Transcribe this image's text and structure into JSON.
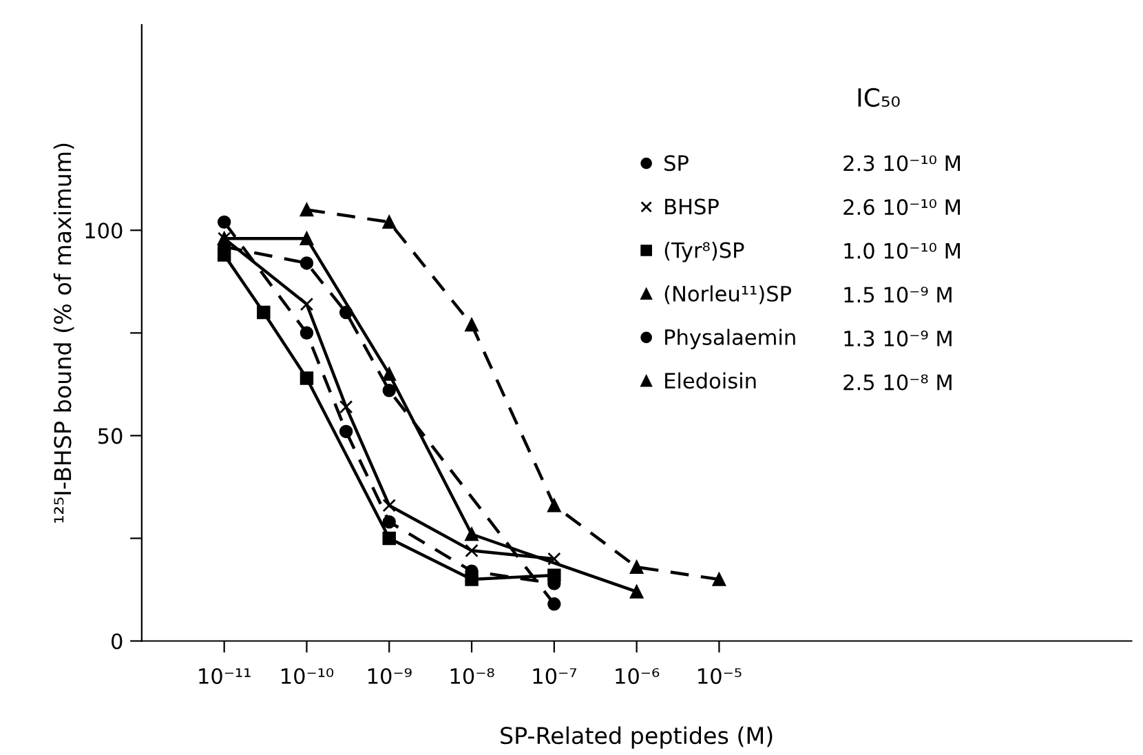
{
  "chart_data": {
    "type": "line",
    "xlabel": "SP-Related peptides (M)",
    "ylabel": "¹²⁵I-BHSP bound (% of maximum)",
    "legend_title": "IC₅₀",
    "log": "x",
    "xlim": [
      1e-12,
      1
    ],
    "xticks": [
      {
        "value": 1e-11,
        "label": "10⁻¹¹"
      },
      {
        "value": 1e-10,
        "label": "10⁻¹⁰"
      },
      {
        "value": 1e-09,
        "label": "10⁻⁹"
      },
      {
        "value": 1e-08,
        "label": "10⁻⁸"
      },
      {
        "value": 1e-07,
        "label": "10⁻⁷"
      },
      {
        "value": 1e-06,
        "label": "10⁻⁶"
      },
      {
        "value": 1e-05,
        "label": "10⁻⁵"
      }
    ],
    "ylim": [
      0,
      150
    ],
    "yticks": [
      0,
      {
        "value": 25,
        "label": null
      },
      50,
      {
        "value": 75,
        "label": null
      },
      100
    ],
    "grid": false,
    "legend": "right",
    "series": [
      {
        "name": "SP",
        "color": "#000000",
        "marker": "circle",
        "line_style": "dashed",
        "x": [
          1e-11,
          1e-10,
          3e-10,
          1e-09,
          1e-08,
          1e-07
        ],
        "values": [
          102,
          75,
          51,
          29,
          17,
          14
        ]
      },
      {
        "name": "BHSP",
        "color": "#000000",
        "marker": "cross",
        "line_style": "solid",
        "x": [
          1e-11,
          1e-10,
          3e-10,
          1e-09,
          1e-08,
          1e-07
        ],
        "values": [
          98,
          82,
          57,
          33,
          22,
          20
        ]
      },
      {
        "name": "(Tyr⁸)SP",
        "color": "#000000",
        "marker": "square",
        "line_style": "solid",
        "x": [
          1e-11,
          3e-11,
          1e-10,
          1e-09,
          1e-08,
          1e-07
        ],
        "values": [
          94,
          80,
          64,
          25,
          15,
          16
        ]
      },
      {
        "name": "(Norleu¹¹)SP",
        "color": "#000000",
        "marker": "triangle",
        "line_style": "solid",
        "x": [
          1e-11,
          1e-10,
          1e-09,
          1e-08,
          1e-06
        ],
        "values": [
          98,
          98,
          65,
          26,
          12
        ]
      },
      {
        "name": "Physalaemin",
        "color": "#000000",
        "marker": "circle",
        "line_style": "dashed",
        "x": [
          1e-11,
          1e-10,
          3e-10,
          1e-09,
          1e-07
        ],
        "values": [
          96,
          92,
          80,
          61,
          9
        ]
      },
      {
        "name": "Eledoisin",
        "color": "#000000",
        "marker": "triangle",
        "line_style": "dashed",
        "x": [
          1e-10,
          1e-09,
          1e-08,
          1e-07,
          1e-06,
          1e-05
        ],
        "values": [
          105,
          102,
          77,
          33,
          18,
          15
        ]
      }
    ],
    "annotations": [
      "2.3 10⁻¹⁰ M",
      "2.6 10⁻¹⁰ M",
      "1.0 10⁻¹⁰ M",
      "1.5 10⁻⁹ M",
      "1.3 10⁻⁹ M",
      "2.5 10⁻⁸ M"
    ]
  }
}
